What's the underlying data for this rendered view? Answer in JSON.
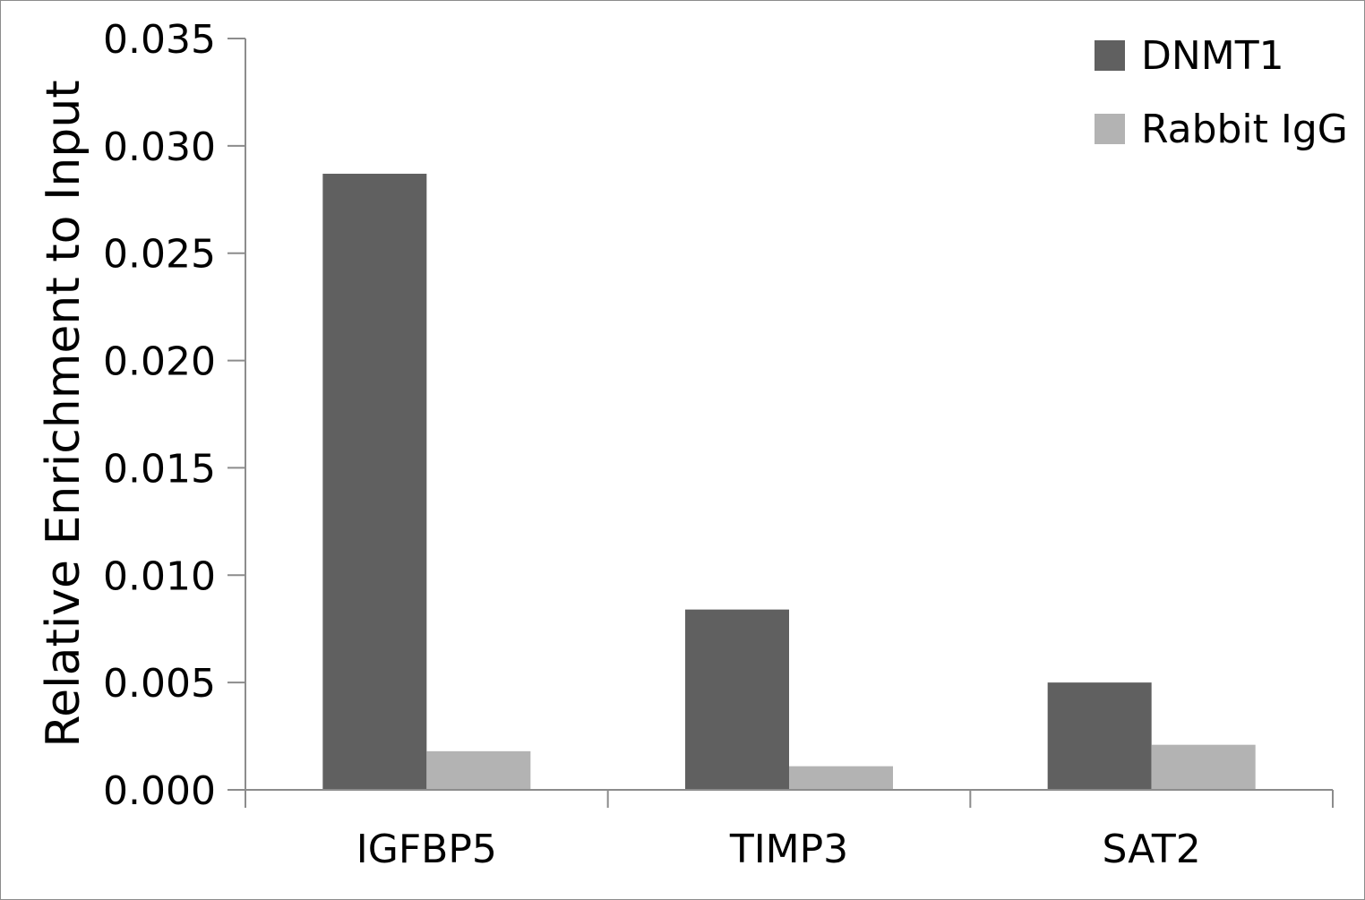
{
  "chart_data": {
    "type": "bar",
    "title": "",
    "xlabel": "",
    "ylabel": "Relative Enrichment to Input",
    "ylim": [
      0,
      0.035
    ],
    "yticks": [
      "0.000",
      "0.005",
      "0.010",
      "0.015",
      "0.020",
      "0.025",
      "0.030",
      "0.035"
    ],
    "categories": [
      "IGFBP5",
      "TIMP3",
      "SAT2"
    ],
    "series": [
      {
        "name": "DNMT1",
        "values": [
          0.0287,
          0.0084,
          0.005
        ],
        "color": "#606060"
      },
      {
        "name": "Rabbit IgG",
        "values": [
          0.0018,
          0.0011,
          0.0021
        ],
        "color": "#b3b3b3"
      }
    ],
    "grid": false,
    "legend": "top-right"
  }
}
